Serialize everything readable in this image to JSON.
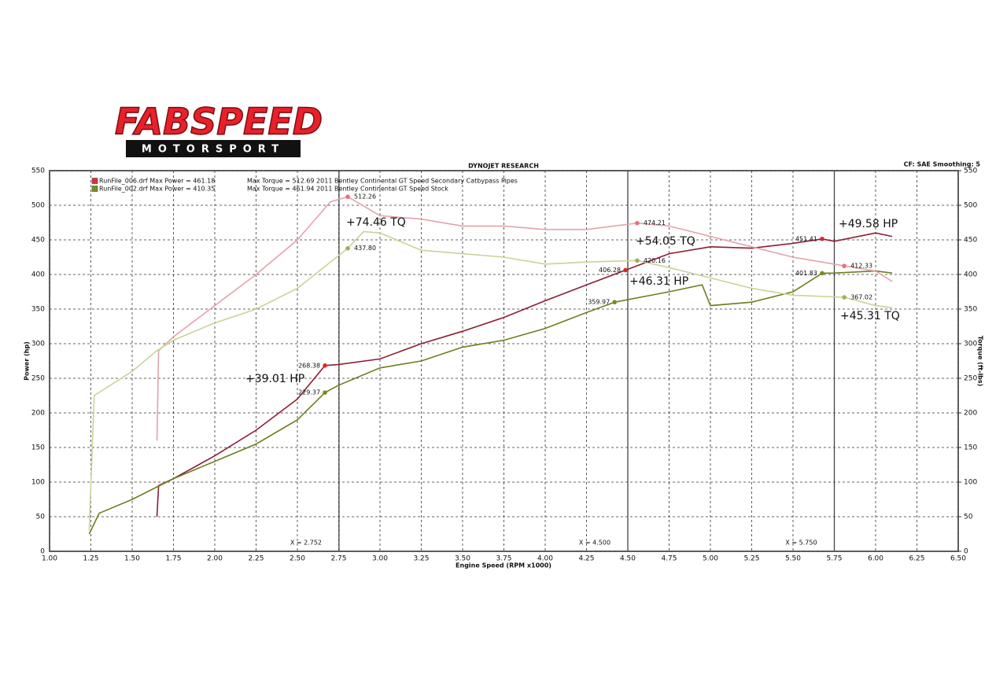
{
  "header": {
    "brand": "FABSPEED",
    "subbrand": "MOTORSPORT"
  },
  "chart_data": {
    "type": "line",
    "title": "DYNOJET RESEARCH",
    "subtitle": "CF: SAE  Smoothing: 5",
    "xlabel": "Engine Speed (RPM x1000)",
    "ylabel": "Power (hp)",
    "y2label": "Torque (ft-lbs)",
    "xlim": [
      1.0,
      6.5
    ],
    "ylim": [
      0,
      550
    ],
    "y2lim": [
      0,
      550
    ],
    "grid": true,
    "xticks": [
      {
        "value": 1.0,
        "label": "1.00"
      },
      {
        "value": 1.25,
        "label": "1.25"
      },
      {
        "value": 1.5,
        "label": "1.50"
      },
      {
        "value": 1.75,
        "label": "1.75"
      },
      {
        "value": 2.0,
        "label": "2.00"
      },
      {
        "value": 2.25,
        "label": "2.25"
      },
      {
        "value": 2.5,
        "label": "2.50"
      },
      {
        "value": 2.75,
        "label": "2.75"
      },
      {
        "value": 3.0,
        "label": "3.00"
      },
      {
        "value": 3.25,
        "label": "3.25"
      },
      {
        "value": 3.5,
        "label": "3.50"
      },
      {
        "value": 3.75,
        "label": "3.75"
      },
      {
        "value": 4.0,
        "label": "4.00"
      },
      {
        "value": 4.25,
        "label": "4.25"
      },
      {
        "value": 4.5,
        "label": "4.50"
      },
      {
        "value": 4.75,
        "label": "4.75"
      },
      {
        "value": 5.0,
        "label": "5.00"
      },
      {
        "value": 5.25,
        "label": "5.25"
      },
      {
        "value": 5.5,
        "label": "5.50"
      },
      {
        "value": 5.75,
        "label": "5.75"
      },
      {
        "value": 6.0,
        "label": "6.00"
      },
      {
        "value": 6.25,
        "label": "6.25"
      },
      {
        "value": 6.5,
        "label": "6.50"
      }
    ],
    "yticks": [
      0,
      50,
      100,
      150,
      200,
      250,
      300,
      350,
      400,
      450,
      500,
      550
    ],
    "y2ticks": [
      0,
      50,
      100,
      150,
      200,
      250,
      300,
      350,
      400,
      450,
      500,
      550
    ],
    "legend": [
      {
        "color": "#d8303a",
        "text": "RunFile_006.drf Max Power = 461.18",
        "detail": "Max Torque = 512.69  2011 Bentley Continental GT Speed Secondary Catbypass Pipes"
      },
      {
        "color": "#7d8a22",
        "text": "RunFile_002.drf Max Power = 410.35",
        "detail": "Max Torque = 461.94  2011 Bentley Continental GT Speed Stock"
      }
    ],
    "series": [
      {
        "color": "#8e1d34",
        "x": [
          1.65,
          1.66,
          1.75,
          2.0,
          2.25,
          2.5,
          2.667,
          2.75,
          3.0,
          3.25,
          3.5,
          3.75,
          4.0,
          4.25,
          4.486,
          4.75,
          5.0,
          5.25,
          5.5,
          5.676,
          5.75,
          6.0,
          6.1
        ],
        "values": [
          50,
          95,
          105,
          138,
          175,
          220,
          268.38,
          270,
          278,
          300,
          318,
          338,
          362,
          385,
          406.28,
          430,
          440,
          438,
          445,
          451.41,
          448,
          460,
          455
        ]
      },
      {
        "color": "#6f7d1e",
        "x": [
          1.24,
          1.3,
          1.5,
          1.75,
          2.0,
          2.25,
          2.5,
          2.667,
          2.75,
          3.0,
          3.25,
          3.5,
          3.75,
          4.0,
          4.25,
          4.42,
          4.75,
          4.95,
          5.0,
          5.25,
          5.5,
          5.676,
          5.75,
          6.0,
          6.1
        ],
        "values": [
          25,
          55,
          75,
          105,
          130,
          155,
          190,
          229.37,
          240,
          265,
          275,
          295,
          305,
          322,
          345,
          359.97,
          375,
          385,
          355,
          360,
          375,
          401.83,
          402,
          405,
          402
        ]
      },
      {
        "color": "#e3a3ab",
        "axis": "y2",
        "x": [
          1.65,
          1.66,
          1.75,
          2.0,
          2.25,
          2.5,
          2.7,
          2.805,
          3.0,
          3.25,
          3.5,
          3.75,
          4.0,
          4.25,
          4.557,
          4.75,
          5.0,
          5.25,
          5.5,
          5.81,
          6.0,
          6.1
        ],
        "values": [
          160,
          290,
          310,
          355,
          400,
          450,
          505,
          512.26,
          485,
          480,
          470,
          470,
          465,
          465,
          474.21,
          470,
          455,
          440,
          425,
          412.33,
          405,
          390
        ]
      },
      {
        "color": "#cdd197",
        "axis": "y2",
        "x": [
          1.24,
          1.27,
          1.5,
          1.65,
          1.75,
          2.0,
          2.25,
          2.5,
          2.805,
          2.9,
          3.0,
          3.25,
          3.5,
          3.75,
          4.0,
          4.25,
          4.557,
          4.75,
          5.0,
          5.25,
          5.5,
          5.81,
          6.0,
          6.1
        ],
        "values": [
          30,
          225,
          260,
          290,
          305,
          330,
          350,
          380,
          437.8,
          462,
          460,
          435,
          430,
          425,
          415,
          418,
          420.16,
          410,
          395,
          380,
          370,
          367.02,
          355,
          352
        ]
      }
    ],
    "markers": [
      {
        "x": 2.805,
        "value": 512.26,
        "label": "512.26",
        "color": "#e8707c",
        "axis": "y2"
      },
      {
        "x": 2.805,
        "value": 437.8,
        "label": "437.80",
        "color": "#a6ab5a",
        "axis": "y2"
      },
      {
        "x": 2.667,
        "value": 268.38,
        "label": "268.38",
        "color": "#d52a2a"
      },
      {
        "x": 2.667,
        "value": 229.37,
        "label": "229.37",
        "color": "#7d8a22"
      },
      {
        "x": 4.557,
        "value": 474.21,
        "label": "474.21",
        "color": "#e8707c",
        "axis": "y2"
      },
      {
        "x": 4.557,
        "value": 420.16,
        "label": "420.16",
        "color": "#a6ab5a",
        "axis": "y2"
      },
      {
        "x": 4.486,
        "value": 406.28,
        "label": "406.28",
        "color": "#d52a2a"
      },
      {
        "x": 4.42,
        "value": 359.97,
        "label": "359.97",
        "color": "#7d8a22"
      },
      {
        "x": 5.676,
        "value": 451.41,
        "label": "451.41",
        "color": "#d52a2a"
      },
      {
        "x": 5.676,
        "value": 401.83,
        "label": "401.83",
        "color": "#7d8a22"
      },
      {
        "x": 5.81,
        "value": 412.33,
        "label": "412.33",
        "color": "#e8707c",
        "axis": "y2"
      },
      {
        "x": 5.81,
        "value": 367.02,
        "label": "367.02",
        "color": "#a6ab5a",
        "axis": "y2"
      }
    ],
    "cursors": [
      {
        "x": 2.752,
        "label": "X = 2.752"
      },
      {
        "x": 4.5,
        "label": "X = 4.500"
      },
      {
        "x": 5.75,
        "label": "X = 5.750"
      }
    ],
    "annotations": [
      "+74.46 TQ",
      "+54.05 TQ",
      "+49.58 HP",
      "+46.31 HP",
      "+45.31 TQ",
      "+39.01 HP"
    ]
  }
}
